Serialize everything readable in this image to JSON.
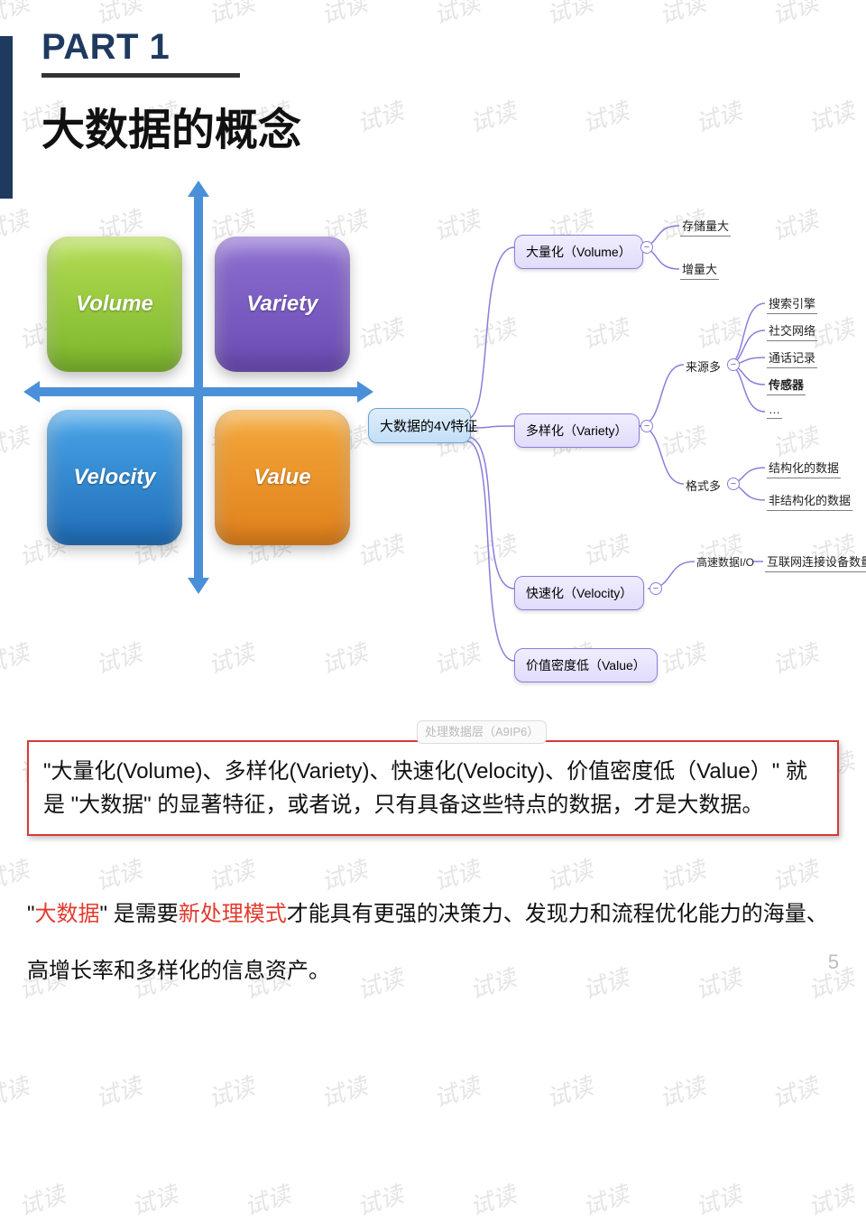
{
  "watermark": {
    "text": "试读",
    "color": "#d0d0d0",
    "fontsize": 26
  },
  "header": {
    "part_label": "PART 1",
    "title": "大数据的概念",
    "accent_color": "#1f3a5f",
    "underline_color": "#333333"
  },
  "quadrant": {
    "type": "infographic",
    "axis_color": "#4a90d9",
    "box_radius": 24,
    "boxes": {
      "tl": {
        "label": "Volume",
        "bg": "linear-gradient(#b4dd52,#7ab52b)"
      },
      "tr": {
        "label": "Variety",
        "bg": "linear-gradient(#8d6fd1,#6a4bb3)"
      },
      "bl": {
        "label": "Velocity",
        "bg": "linear-gradient(#4aa6e8,#1f6db8)"
      },
      "br": {
        "label": "Value",
        "bg": "linear-gradient(#f4a93b,#e0801b)"
      }
    }
  },
  "mindmap": {
    "type": "tree",
    "line_color": "#8a7edb",
    "root_bg": "#c2dff6",
    "branch_bg": "#e1dcfb",
    "root": "大数据的4V特征",
    "volume": {
      "label": "大量化（Volume）",
      "leaves": [
        "存储量大",
        "增量大"
      ]
    },
    "variety": {
      "label": "多样化（Variety）",
      "source": {
        "label": "来源多",
        "leaves": [
          "搜索引擎",
          "社交网络",
          "通话记录",
          "传感器",
          "…"
        ]
      },
      "format": {
        "label": "格式多",
        "leaves": [
          "结构化的数据",
          "非结构化的数据"
        ]
      }
    },
    "velocity": {
      "label": "快速化（Velocity）",
      "sub": "高速数据I/O",
      "leaf": "互联网连接设备数量增长"
    },
    "value": {
      "label": "价值密度低（Value）"
    },
    "ghost_label": "处理数据层（A9IP6）"
  },
  "summary_box": {
    "border_color": "#d43a3a",
    "text": "\"大量化(Volume)、多样化(Variety)、快速化(Velocity)、价值密度低（Value）\" 就是 \"大数据\" 的显著特征，或者说，只有具备这些特点的数据，才是大数据。",
    "fontsize": 24
  },
  "definition": {
    "prefix": "\"",
    "red1": "大数据",
    "mid1": "\" 是需要",
    "red2": "新处理模式",
    "rest": "才能具有更强的决策力、发现力和流程优化能力的海量、高增长率和多样化的信息资产。",
    "highlight_color": "#e23a2e",
    "fontsize": 24
  },
  "page_number": "5"
}
